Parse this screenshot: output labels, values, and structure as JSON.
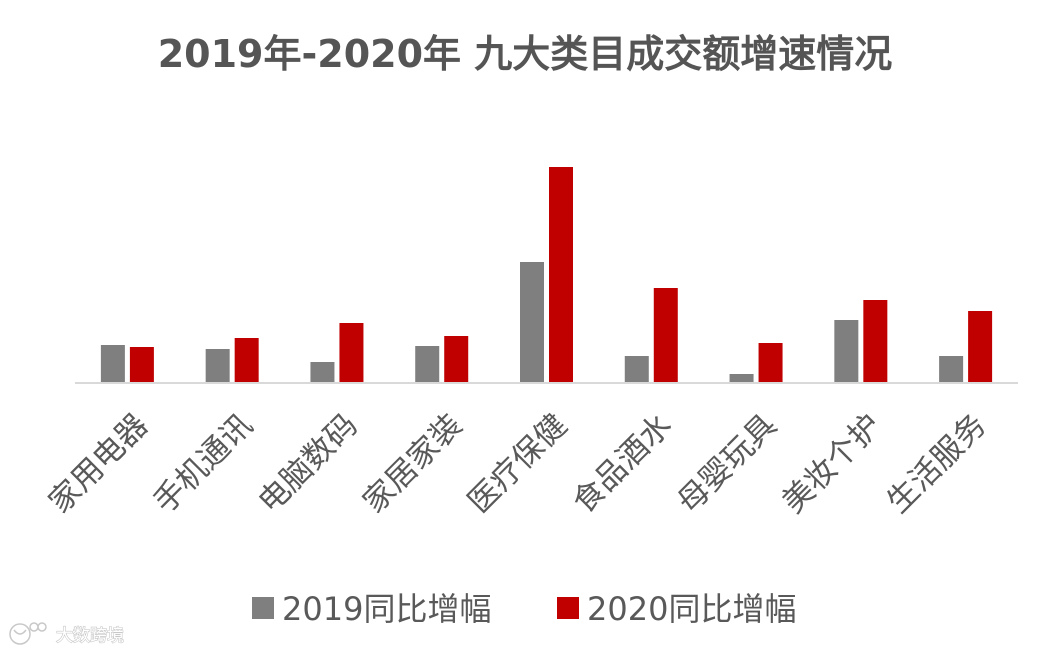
{
  "chart_data": {
    "type": "bar",
    "title": "2019年-2020年 九大类目成交额增速情况",
    "categories": [
      "家用电器",
      "手机通讯",
      "电脑数码",
      "家居家装",
      "医疗保健",
      "食品酒水",
      "母婴玩具",
      "美妆个护",
      "生活服务"
    ],
    "series": [
      {
        "name": "2019同比增幅",
        "color": "#7f7f7f",
        "values": [
          38,
          34,
          21,
          37,
          121,
          27,
          9,
          63,
          27
        ]
      },
      {
        "name": "2020同比增幅",
        "color": "#c00000",
        "values": [
          36,
          45,
          60,
          47,
          216,
          95,
          40,
          83,
          72
        ]
      }
    ],
    "xlabel": "",
    "ylabel": "",
    "ylim": [
      0,
      220
    ],
    "grid": false,
    "legend": "bottom"
  },
  "watermark": "大数跨境"
}
